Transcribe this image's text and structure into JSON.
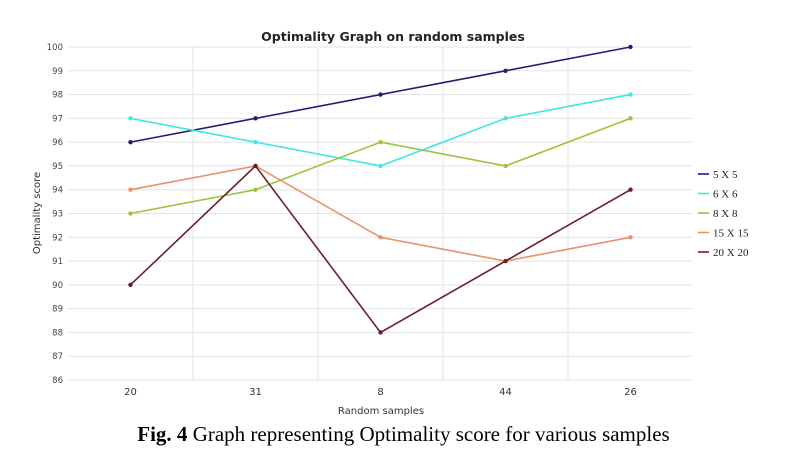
{
  "chart_data": {
    "type": "line",
    "title": "Optimality Graph on random samples",
    "xlabel": "Random samples",
    "ylabel": "Optimality score",
    "categories": [
      "20",
      "31",
      "8",
      "44",
      "26"
    ],
    "ylim": [
      86,
      100
    ],
    "yticks": [
      86,
      87,
      88,
      89,
      90,
      91,
      92,
      93,
      94,
      95,
      96,
      97,
      98,
      99,
      100
    ],
    "grid": true,
    "legend_position": "right",
    "series": [
      {
        "name": "5 X 5",
        "color": "#1f1f78",
        "values": [
          96,
          97,
          98,
          99,
          100
        ]
      },
      {
        "name": "6 X 6",
        "color": "#3ee6e6",
        "values": [
          97,
          96,
          95,
          97,
          98
        ]
      },
      {
        "name": "8 X 8",
        "color": "#9cc43b",
        "values": [
          93,
          94,
          96,
          95,
          97
        ]
      },
      {
        "name": "15 X 15",
        "color": "#e8926c",
        "values": [
          94,
          95,
          92,
          91,
          92
        ]
      },
      {
        "name": "20 X 20",
        "color": "#6b1f2a",
        "values": [
          90,
          95,
          88,
          91,
          94
        ]
      }
    ]
  },
  "caption": {
    "label": "Fig. 4",
    "text": " Graph representing Optimality score for various samples"
  }
}
